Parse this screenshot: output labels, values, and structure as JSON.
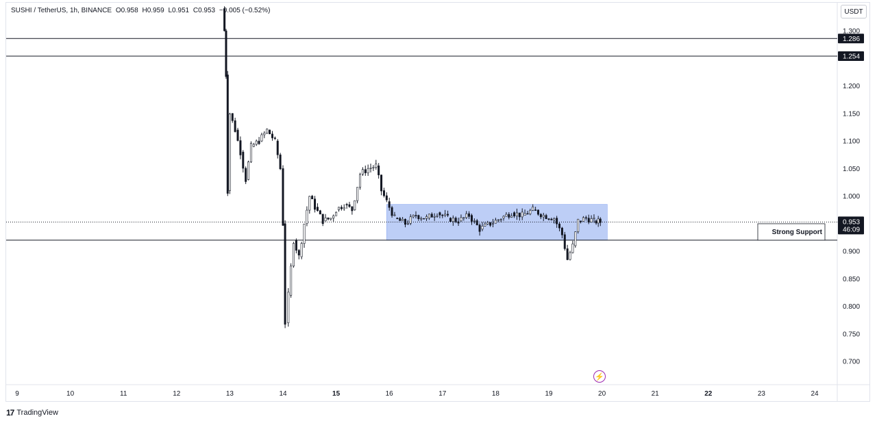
{
  "legend": {
    "symbol": "SUSHI / TetherUS, 1h, BINANCE",
    "open": "O0.958",
    "high": "H0.959",
    "low": "L0.951",
    "close": "C0.953",
    "change": "−0.005 (−0.52%)"
  },
  "currency": "USDT",
  "brand": {
    "logo": "17",
    "name": "TradingView"
  },
  "chart_data": {
    "type": "candlestick",
    "symbol": "SUSHI / TetherUS",
    "interval": "1h",
    "exchange": "BINANCE",
    "y_ticks": [
      "1.300",
      "1.200",
      "1.150",
      "1.100",
      "1.050",
      "1.000",
      "0.900",
      "0.850",
      "0.800",
      "0.750",
      "0.700"
    ],
    "y_range": [
      0.66,
      1.34
    ],
    "x_ticks": [
      {
        "label": "9",
        "day": 9,
        "bold": false
      },
      {
        "label": "10",
        "day": 10,
        "bold": false
      },
      {
        "label": "11",
        "day": 11,
        "bold": false
      },
      {
        "label": "12",
        "day": 12,
        "bold": false
      },
      {
        "label": "13",
        "day": 13,
        "bold": false
      },
      {
        "label": "14",
        "day": 14,
        "bold": false
      },
      {
        "label": "15",
        "day": 15,
        "bold": true
      },
      {
        "label": "16",
        "day": 16,
        "bold": false
      },
      {
        "label": "17",
        "day": 17,
        "bold": false
      },
      {
        "label": "18",
        "day": 18,
        "bold": false
      },
      {
        "label": "19",
        "day": 19,
        "bold": false
      },
      {
        "label": "20",
        "day": 20,
        "bold": false
      },
      {
        "label": "21",
        "day": 21,
        "bold": false
      },
      {
        "label": "22",
        "day": 22,
        "bold": true
      },
      {
        "label": "23",
        "day": 23,
        "bold": false
      },
      {
        "label": "24",
        "day": 24,
        "bold": false
      }
    ],
    "horizontal_levels": [
      {
        "value": 1.286,
        "label": "1.286"
      },
      {
        "value": 1.254,
        "label": "1.254"
      },
      {
        "value": 0.92,
        "label": ""
      }
    ],
    "current_price": {
      "value": 0.953,
      "label": "0.953",
      "countdown": "46:09"
    },
    "range_box": {
      "from_day": 15.95,
      "to_day": 20.1,
      "top": 0.985,
      "bottom": 0.92,
      "color": "#b2c5f5"
    },
    "annotation": {
      "text": "Strong Support",
      "price": 0.935
    },
    "price_path": [
      [
        12.87,
        1.34
      ],
      [
        12.9,
        1.3
      ],
      [
        12.93,
        1.22
      ],
      [
        12.96,
        1.01
      ],
      [
        13.0,
        1.15
      ],
      [
        13.1,
        1.12
      ],
      [
        13.2,
        1.08
      ],
      [
        13.3,
        1.03
      ],
      [
        13.4,
        1.09
      ],
      [
        13.55,
        1.1
      ],
      [
        13.7,
        1.12
      ],
      [
        13.85,
        1.1
      ],
      [
        13.95,
        1.05
      ],
      [
        14.0,
        0.95
      ],
      [
        14.04,
        0.77
      ],
      [
        14.1,
        0.82
      ],
      [
        14.2,
        0.92
      ],
      [
        14.3,
        0.89
      ],
      [
        14.4,
        0.95
      ],
      [
        14.5,
        1.0
      ],
      [
        14.6,
        0.98
      ],
      [
        14.75,
        0.955
      ],
      [
        14.9,
        0.96
      ],
      [
        15.0,
        0.975
      ],
      [
        15.15,
        0.985
      ],
      [
        15.3,
        0.975
      ],
      [
        15.45,
        1.04
      ],
      [
        15.6,
        1.05
      ],
      [
        15.75,
        1.055
      ],
      [
        15.85,
        1.01
      ],
      [
        15.95,
        0.99
      ],
      [
        16.1,
        0.96
      ],
      [
        16.3,
        0.95
      ],
      [
        16.5,
        0.965
      ],
      [
        16.7,
        0.96
      ],
      [
        16.9,
        0.97
      ],
      [
        17.1,
        0.96
      ],
      [
        17.3,
        0.955
      ],
      [
        17.5,
        0.965
      ],
      [
        17.7,
        0.94
      ],
      [
        17.9,
        0.95
      ],
      [
        18.1,
        0.96
      ],
      [
        18.3,
        0.97
      ],
      [
        18.5,
        0.965
      ],
      [
        18.7,
        0.975
      ],
      [
        18.9,
        0.965
      ],
      [
        19.1,
        0.96
      ],
      [
        19.25,
        0.93
      ],
      [
        19.35,
        0.885
      ],
      [
        19.45,
        0.91
      ],
      [
        19.55,
        0.955
      ],
      [
        19.7,
        0.96
      ],
      [
        19.85,
        0.955
      ],
      [
        19.97,
        0.953
      ]
    ]
  }
}
